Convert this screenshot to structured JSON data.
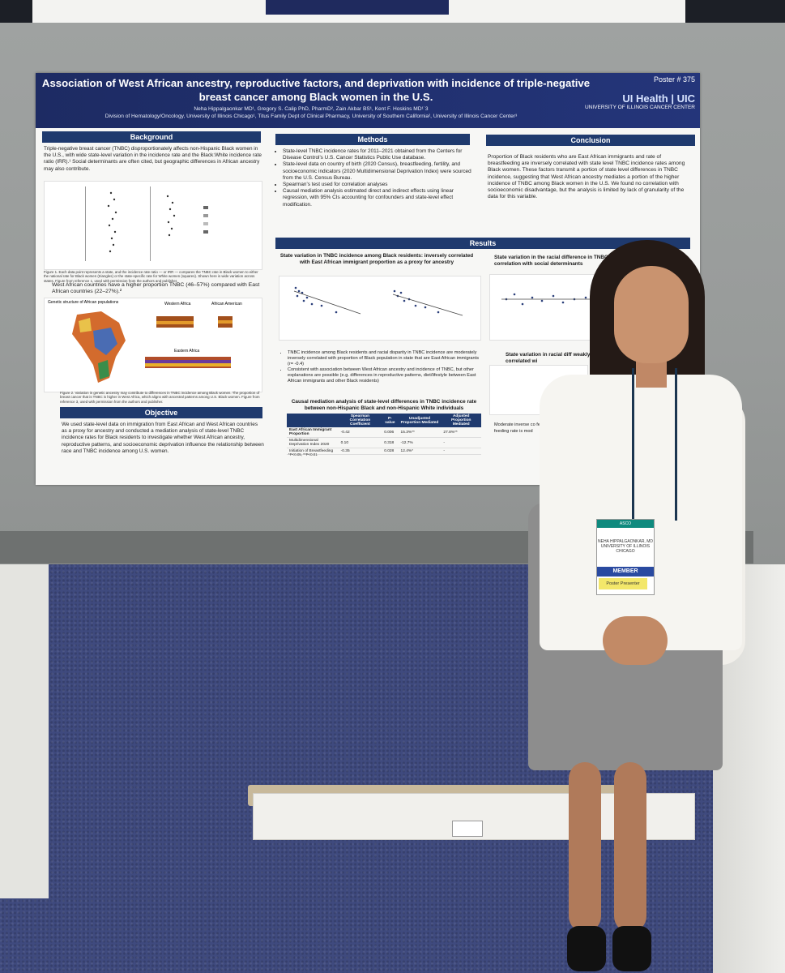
{
  "poster": {
    "title": "Association of West African ancestry, reproductive factors, and deprivation with incidence of triple-negative breast cancer among Black women in the U.S.",
    "number": "Poster # 375",
    "authors": "Neha Hippalgaonkar MD¹, Gregory S. Calip PhD, PharmD², Zain Akbar BS¹, Kent F. Hoskins MD¹˙3",
    "affiliations": "Division of Hematology/Oncology, University of Illinois Chicago¹, Titus Family Dept of Clinical Pharmacy, University of Southern California², University of Illinois Cancer Center³",
    "logo_main": "UI Health | UIC",
    "logo_sub": "UNIVERSITY OF ILLINOIS CANCER CENTER",
    "background": {
      "heading": "Background",
      "text": "Triple-negative breast cancer (TNBC) disproportionately affects non-Hispanic Black women in the U.S., with wide state-level variation in the incidence rate and the Black:White incidence rate ratio (IRR).¹ Social determinants are often cited, but geographic differences in African ancestry may also contribute.",
      "fig1_caption": "Figure 1. Each data point represents a state, and the incidence rate ratio — or IRR — compares the TNBC rate in Black women to either the national rate for Black women (triangles) or the state-specific rate for White women (squares). Shown here is wide variation across states. Figure from reference 1, used with permission from the authors and publisher.",
      "text2": "West African countries have a higher proportion TNBC (46–57%) compared with East African countries (22–27%).²",
      "fig2_title": "Genetic structure of African populations",
      "fig2_labels": [
        "Western Africa",
        "African American",
        "Eastern Africa"
      ],
      "fig2_caption": "Figure 2. Variation in genetic ancestry may contribute to differences in TNBC incidence among Black women. The proportion of breast cancer that is TNBC is higher in West Africa, which aligns with ancestral patterns among U.S. Black women. Figure from reference 3, used with permission from the authors and publisher."
    },
    "objective": {
      "heading": "Objective",
      "text": "We used state-level data on immigration from East African and West African countries as a proxy for ancestry and conducted a mediation analysis of state-level TNBC incidence rates for Black residents to investigate whether West African ancestry, reproductive patterns, and socioeconomic deprivation influence the relationship between race and TNBC incidence among U.S. women."
    },
    "methods": {
      "heading": "Methods",
      "items": [
        "State-level TNBC incidence rates for 2011–2021 obtained from the Centers for Disease Control's U.S. Cancer Statistics Public Use database.",
        "State-level data on country of birth (2020 Census), breastfeeding, fertility, and socioeconomic indicators (2020 Multidimensional Deprivation Index) were sourced from the U.S. Census Bureau.",
        "Spearman's test used for correlation analyses",
        "Causal mediation analysis estimated direct and indirect effects using linear regression, with 95% CIs accounting for confounders and state-level effect modification."
      ]
    },
    "conclusion": {
      "heading": "Conclusion",
      "text": "Proportion of Black residents who are East African immigrants and rate of breastfeeding are inversely correlated with state level TNBC incidence rates among Black women. These factors transmit a portion of state level differences in TNBC incidence, suggesting that West African ancestry mediates a portion of the higher incidence of TNBC among Black women in the U.S. We found no correlation with socioeconomic disadvantage, but the analysis is limited by lack of granularity of the data for this variable."
    },
    "results": {
      "heading": "Results",
      "sub1": "State variation in TNBC incidence among Black residents: inversely correlated with East African immigrant proportion as a proxy for ancestry",
      "sub2": "State variation in the racial difference in TNBC no correlation with social determinants",
      "sub3": "State variation in racial diff weakly correlated wi",
      "bullets": [
        "TNBC incidence among Black residents and racial disparity in TNBC incidence are moderately inversely correlated with proportion of Black population in state that are East African immigrants (r= -0.4)",
        "Consistent with association between West African ancestry and incidence of TNBC, but other explanations are possible (e.g. differences in reproductive patterns, diet/lifestyle between East African immigrants and other Black residents)"
      ],
      "table_title": "Causal mediation analysis of state-level differences in TNBC incidence rate between non-Hispanic Black and non-Hispanic White individuals",
      "table_headers": [
        "",
        "Spearman Correlation Coefficient",
        "P-value",
        "Unadjusted Proportion Mediated",
        "Adjusted Proportion Mediated"
      ],
      "table_rows": [
        [
          "East African Immigrant Proportion",
          "-0.42",
          "0.006",
          "15.3%**",
          "27.8%**"
        ],
        [
          "Multidimensional Deprivation Index 2020",
          "0.10",
          "0.318",
          "-12.7%",
          "-"
        ],
        [
          "Initiation of Breastfeeding",
          "-0.35",
          "0.028",
          "12.4%*",
          "-"
        ]
      ],
      "table_note": "*P<0.05, **P<0.01",
      "side_bullets": "Moderate inverse co feed infants and TN feeding rate is mod"
    }
  },
  "badge": {
    "conference": "ASCO",
    "name": "NEHA HIPPALGAONKAR, MD UNIVERSITY OF ILLINOIS CHICAGO",
    "member": "MEMBER",
    "ribbon": "Poster Presenter"
  },
  "colors": {
    "poster_navy": "#1d2b63",
    "section_blue": "#1f3a6e",
    "board_gray": "#9fa2a1",
    "carpet_blue": "#3f4a7e"
  }
}
